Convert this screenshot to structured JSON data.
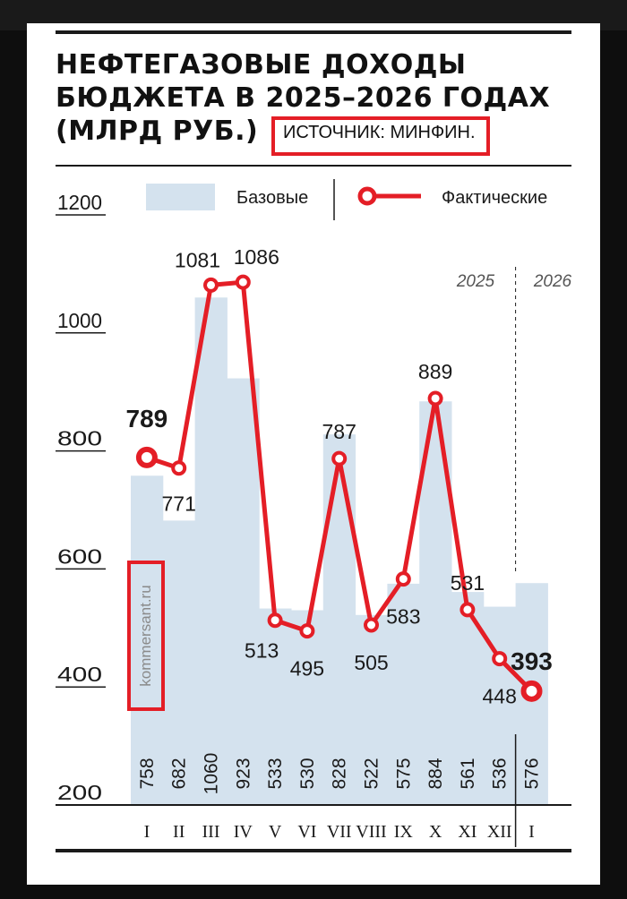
{
  "title": "НЕФТЕГАЗОВЫЕ ДОХОДЫ\nБЮДЖЕТА В 2025–2026 ГОДАХ\n(МЛРД РУБ.)",
  "source": "ИСТОЧНИК: МИНФИН.",
  "watermark": "kommersant.ru",
  "colors": {
    "base": "#d4e2ee",
    "actual": "#e41e26",
    "accent_box": "#e41e26",
    "text": "#1a1a1a"
  },
  "chart_data": {
    "type": "bar",
    "categories": [
      "I",
      "II",
      "III",
      "IV",
      "V",
      "VI",
      "VII",
      "VIII",
      "IX",
      "X",
      "XI",
      "XII",
      "I"
    ],
    "year_labels": [
      "2025",
      "2026"
    ],
    "ylim": [
      200,
      1200
    ],
    "yticks": [
      1200,
      1000,
      800,
      600,
      400,
      200
    ],
    "legend": [
      "Базовые",
      "Фактические"
    ],
    "legend_position": "top",
    "series": [
      {
        "name": "Базовые",
        "type": "bar",
        "values": [
          758,
          682,
          1060,
          923,
          533,
          530,
          828,
          522,
          575,
          884,
          561,
          536,
          576
        ]
      },
      {
        "name": "Фактические",
        "type": "line",
        "values": [
          789,
          771,
          1081,
          1086,
          513,
          495,
          787,
          505,
          583,
          889,
          531,
          448,
          393
        ]
      }
    ]
  }
}
